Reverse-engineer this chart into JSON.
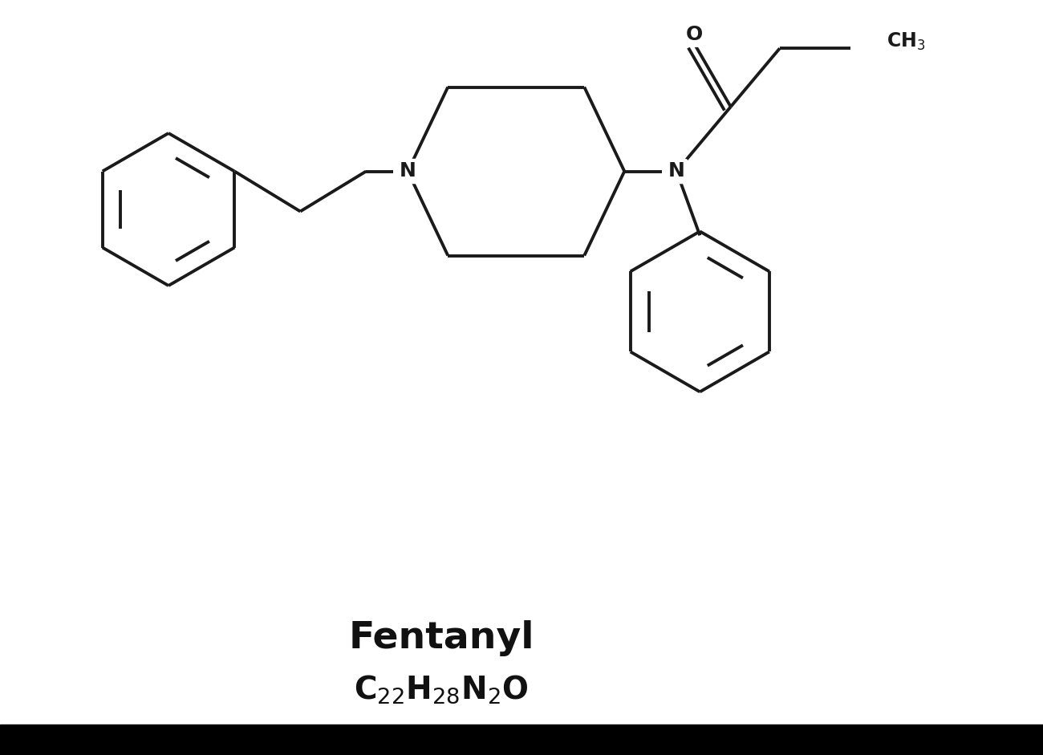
{
  "background_color": "#ffffff",
  "line_color": "#1a1a1a",
  "line_width": 2.8,
  "font_color": "#111111",
  "bottom_bar_color": "#000000",
  "title": "Fentanyl",
  "formula_parts": [
    "C",
    "22",
    "H",
    "28",
    "N",
    "2",
    "O"
  ]
}
